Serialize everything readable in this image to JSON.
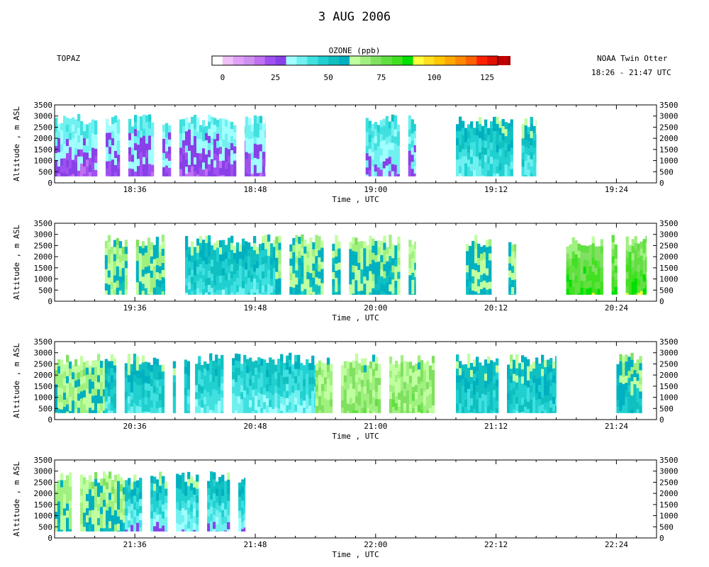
{
  "header": {
    "title": "3 AUG 2006",
    "left_label": "TOPAZ",
    "right_label": "NOAA Twin Otter",
    "time_range": "18:26 - 21:47 UTC"
  },
  "colorbar": {
    "title": "OZONE (ppb)",
    "ticks": [
      "0",
      "25",
      "50",
      "75",
      "100",
      "125"
    ],
    "tick_values": [
      0,
      25,
      50,
      75,
      100,
      125
    ],
    "range": [
      -5,
      130
    ],
    "bin_width": 5,
    "colors": [
      "#ffffff",
      "#f0c0f8",
      "#e0a0f8",
      "#d090f0",
      "#c070f0",
      "#a050f0",
      "#8840e8",
      "#a0ffff",
      "#70f0f0",
      "#40e0e0",
      "#20d0d0",
      "#10c0c0",
      "#00b0c0",
      "#c0ffa0",
      "#a0f080",
      "#80e060",
      "#60e040",
      "#40e020",
      "#00e000",
      "#ffff40",
      "#ffe020",
      "#ffc800",
      "#ffa800",
      "#ff8800",
      "#ff6000",
      "#ff2000",
      "#e01000",
      "#c00000",
      "#a00000",
      "#802000",
      "#602000",
      "#000000"
    ]
  },
  "chart_data": [
    {
      "type": "heatmap",
      "xlabel": "Time , UTC",
      "ylabel": "Altitude , m ASL",
      "x_ticks": [
        "18:36",
        "18:48",
        "19:00",
        "19:12",
        "19:24"
      ],
      "xlim": [
        "18:28",
        "19:28"
      ],
      "y_ticks": [
        "0",
        "500",
        "1000",
        "1500",
        "2000",
        "2500",
        "3000",
        "3500"
      ],
      "ylim": [
        0,
        3500
      ],
      "data_blocks": [
        {
          "start": "18:28",
          "end": "18:47",
          "alt_min": 300,
          "alt_max": 3100,
          "ozone_top": 40,
          "ozone_bottom": 22
        },
        {
          "start": "18:47",
          "end": "18:49",
          "alt_min": 300,
          "alt_max": 3100,
          "ozone_top": 40,
          "ozone_bottom": 22
        },
        {
          "start": "18:59",
          "end": "19:04",
          "alt_min": 300,
          "alt_max": 3100,
          "ozone_top": 45,
          "ozone_bottom": 28
        },
        {
          "start": "19:08",
          "end": "19:12",
          "alt_min": 300,
          "alt_max": 3000,
          "ozone_top": 55,
          "ozone_bottom": 38
        },
        {
          "start": "19:12",
          "end": "19:16",
          "alt_min": 300,
          "alt_max": 3000,
          "ozone_top": 60,
          "ozone_bottom": 40
        }
      ]
    },
    {
      "type": "heatmap",
      "xlabel": "Time , UTC",
      "ylabel": "Altitude , m ASL",
      "x_ticks": [
        "19:36",
        "19:48",
        "20:00",
        "20:12",
        "20:24"
      ],
      "xlim": [
        "19:28",
        "20:28"
      ],
      "y_ticks": [
        "0",
        "500",
        "1000",
        "1500",
        "2000",
        "2500",
        "3000",
        "3500"
      ],
      "ylim": [
        0,
        3500
      ],
      "data_blocks": [
        {
          "start": "19:33",
          "end": "19:39",
          "alt_min": 300,
          "alt_max": 3000,
          "ozone_top": 65,
          "ozone_bottom": 60
        },
        {
          "start": "19:41",
          "end": "19:50",
          "alt_min": 300,
          "alt_max": 3000,
          "ozone_top": 60,
          "ozone_bottom": 40
        },
        {
          "start": "19:50",
          "end": "20:04",
          "alt_min": 300,
          "alt_max": 3000,
          "ozone_top": 65,
          "ozone_bottom": 55
        },
        {
          "start": "20:09",
          "end": "20:14",
          "alt_min": 300,
          "alt_max": 3000,
          "ozone_top": 65,
          "ozone_bottom": 55
        },
        {
          "start": "20:19",
          "end": "20:27",
          "alt_min": 300,
          "alt_max": 3000,
          "ozone_top": 70,
          "ozone_bottom": 85
        }
      ]
    },
    {
      "type": "heatmap",
      "xlabel": "Time , UTC",
      "ylabel": "Altitude , m ASL",
      "x_ticks": [
        "20:36",
        "20:48",
        "21:00",
        "21:12",
        "21:24"
      ],
      "xlim": [
        "20:28",
        "21:28"
      ],
      "y_ticks": [
        "0",
        "500",
        "1000",
        "1500",
        "2000",
        "2500",
        "3000",
        "3500"
      ],
      "ylim": [
        0,
        3500
      ],
      "data_blocks": [
        {
          "start": "20:28",
          "end": "20:33",
          "alt_min": 300,
          "alt_max": 3000,
          "ozone_top": 65,
          "ozone_bottom": 60
        },
        {
          "start": "20:33",
          "end": "20:42",
          "alt_min": 300,
          "alt_max": 3000,
          "ozone_top": 60,
          "ozone_bottom": 40
        },
        {
          "start": "20:42",
          "end": "20:54",
          "alt_min": 300,
          "alt_max": 3000,
          "ozone_top": 55,
          "ozone_bottom": 35
        },
        {
          "start": "20:54",
          "end": "21:06",
          "alt_min": 300,
          "alt_max": 3000,
          "ozone_top": 65,
          "ozone_bottom": 70
        },
        {
          "start": "21:08",
          "end": "21:18",
          "alt_min": 300,
          "alt_max": 3000,
          "ozone_top": 60,
          "ozone_bottom": 45
        },
        {
          "start": "21:24",
          "end": "21:28",
          "alt_min": 300,
          "alt_max": 3000,
          "ozone_top": 65,
          "ozone_bottom": 50
        }
      ]
    },
    {
      "type": "heatmap",
      "xlabel": "Time , UTC",
      "ylabel": "Altitude , m ASL",
      "x_ticks": [
        "21:36",
        "21:48",
        "22:00",
        "22:12",
        "22:24"
      ],
      "xlim": [
        "21:28",
        "22:28"
      ],
      "y_ticks": [
        "0",
        "500",
        "1000",
        "1500",
        "2000",
        "2500",
        "3000",
        "3500"
      ],
      "ylim": [
        0,
        3500
      ],
      "data_blocks": [
        {
          "start": "21:28",
          "end": "21:35",
          "alt_min": 300,
          "alt_max": 3000,
          "ozone_top": 65,
          "ozone_bottom": 60
        },
        {
          "start": "21:35",
          "end": "21:47",
          "alt_min": 300,
          "alt_max": 3000,
          "ozone_top": 60,
          "ozone_bottom": 30
        }
      ]
    }
  ]
}
